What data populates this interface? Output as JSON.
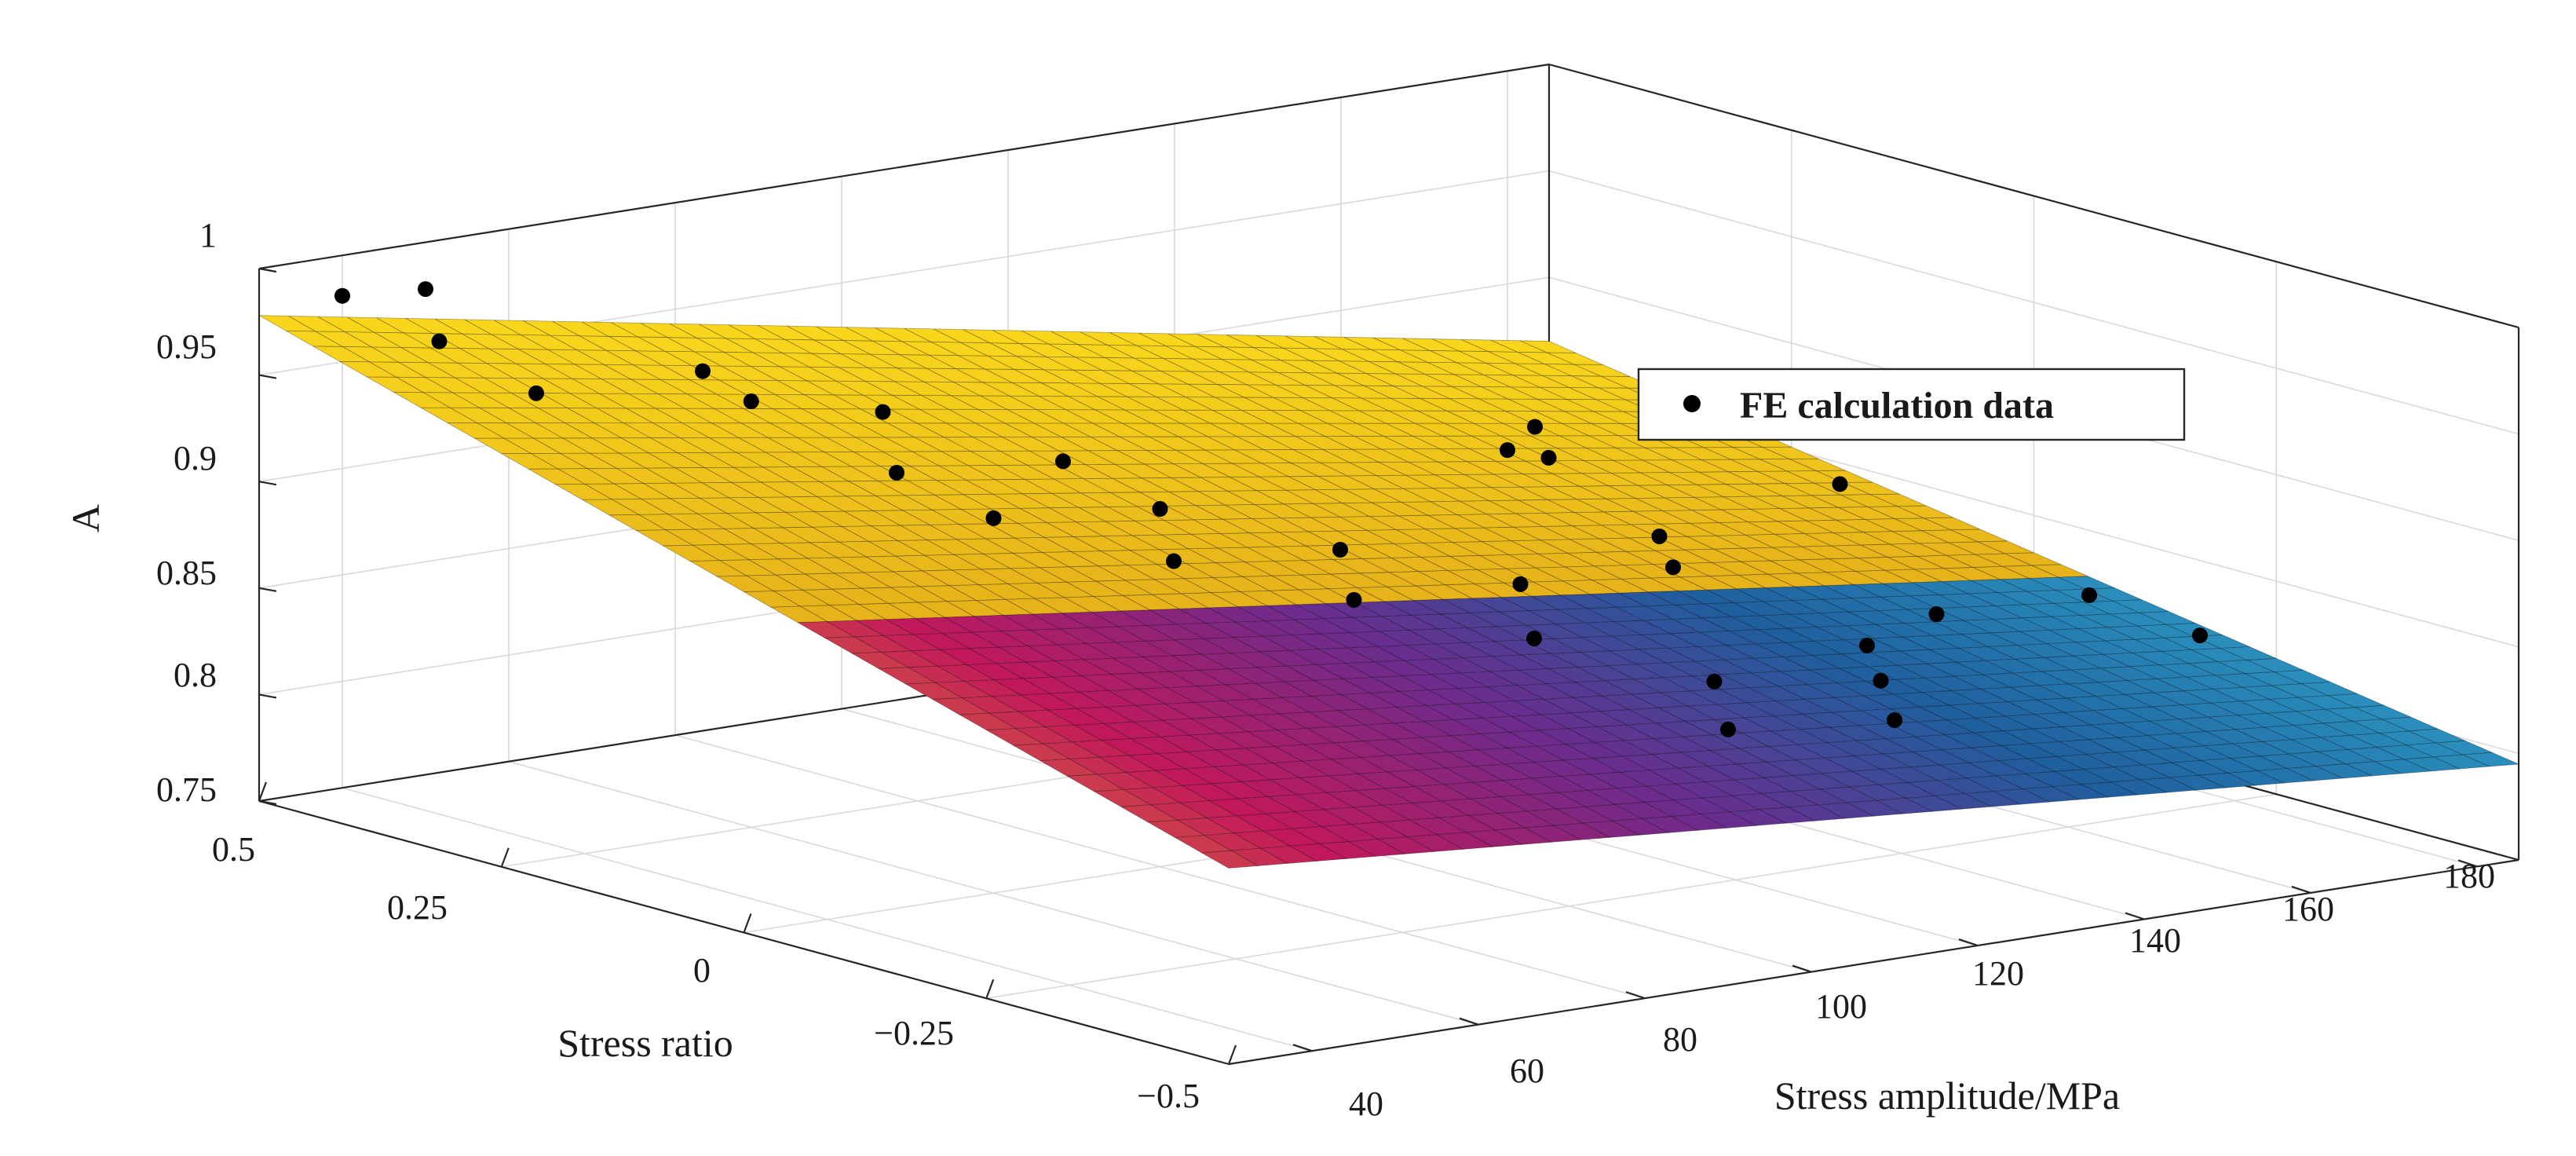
{
  "chart_data": {
    "type": "surface",
    "zlabel": "A",
    "xlabel": "Stress ratio",
    "ylabel": "Stress amplitude/MPa",
    "xlim": [
      -0.5,
      0.5
    ],
    "ylim": [
      30,
      185
    ],
    "zlim": [
      0.75,
      1
    ],
    "x_ticks": [
      -0.5,
      -0.25,
      0,
      0.25,
      0.5
    ],
    "x_tick_labels": [
      "−0.5",
      "−0.25",
      "0",
      "0.25",
      "0.5"
    ],
    "y_ticks": [
      40,
      60,
      80,
      100,
      120,
      140,
      160,
      180
    ],
    "y_tick_labels": [
      "40",
      "60",
      "80",
      "100",
      "120",
      "140",
      "160",
      "180"
    ],
    "z_ticks": [
      0.75,
      0.8,
      0.85,
      0.9,
      0.95,
      1
    ],
    "z_tick_labels": [
      "0.75",
      "0.8",
      "0.85",
      "0.9",
      "0.95",
      "1"
    ],
    "grid": true,
    "colormap": [
      "#f9d71c",
      "#e6b21a",
      "#c2185b",
      "#6a2c8e",
      "#1f5f9e",
      "#2a8fbd"
    ],
    "surface_fit": {
      "description": "fitted surface A(R, Sa)",
      "R_range": [
        -0.5,
        0.5
      ],
      "Sa_range": [
        30,
        185
      ]
    },
    "legend": {
      "position": "top-right",
      "entries": [
        {
          "label": "FE calculation data",
          "marker": "filled-circle",
          "color": "#000000"
        }
      ]
    },
    "series": [
      {
        "name": "FE calculation data",
        "points": [
          {
            "R": 0.5,
            "Sa": 40,
            "A": 0.981
          },
          {
            "R": 0.5,
            "Sa": 50,
            "A": 0.978
          },
          {
            "R": 0.4,
            "Sa": 40,
            "A": 0.972
          },
          {
            "R": 0.3,
            "Sa": 60,
            "A": 0.958
          },
          {
            "R": 0.3,
            "Sa": 40,
            "A": 0.96
          },
          {
            "R": 0.2,
            "Sa": 70,
            "A": 0.945
          },
          {
            "R": 0.25,
            "Sa": 60,
            "A": 0.95
          },
          {
            "R": 0.1,
            "Sa": 60,
            "A": 0.935
          },
          {
            "R": 0.1,
            "Sa": 80,
            "A": 0.928
          },
          {
            "R": 0.0,
            "Sa": 80,
            "A": 0.918
          },
          {
            "R": 0.0,
            "Sa": 60,
            "A": 0.926
          },
          {
            "R": -0.1,
            "Sa": 90,
            "A": 0.905
          },
          {
            "R": -0.1,
            "Sa": 70,
            "A": 0.912
          },
          {
            "R": -0.2,
            "Sa": 100,
            "A": 0.895
          },
          {
            "R": -0.2,
            "Sa": 80,
            "A": 0.9
          },
          {
            "R": -0.3,
            "Sa": 90,
            "A": 0.888
          },
          {
            "R": -0.4,
            "Sa": 100,
            "A": 0.874
          },
          {
            "R": -0.5,
            "Sa": 110,
            "A": 0.862
          },
          {
            "R": -0.5,
            "Sa": 90,
            "A": 0.87
          },
          {
            "R": -0.4,
            "Sa": 120,
            "A": 0.862
          },
          {
            "R": -0.3,
            "Sa": 130,
            "A": 0.86
          },
          {
            "R": -0.1,
            "Sa": 130,
            "A": 0.872
          },
          {
            "R": 0.0,
            "Sa": 140,
            "A": 0.868
          },
          {
            "R": 0.2,
            "Sa": 150,
            "A": 0.874
          },
          {
            "R": 0.3,
            "Sa": 160,
            "A": 0.87
          },
          {
            "R": -0.2,
            "Sa": 150,
            "A": 0.85
          },
          {
            "R": -0.3,
            "Sa": 170,
            "A": 0.84
          },
          {
            "R": -0.1,
            "Sa": 180,
            "A": 0.828
          },
          {
            "R": 0.2,
            "Sa": 185,
            "A": 0.84
          },
          {
            "R": 0.5,
            "Sa": 180,
            "A": 0.822
          }
        ]
      }
    ]
  }
}
